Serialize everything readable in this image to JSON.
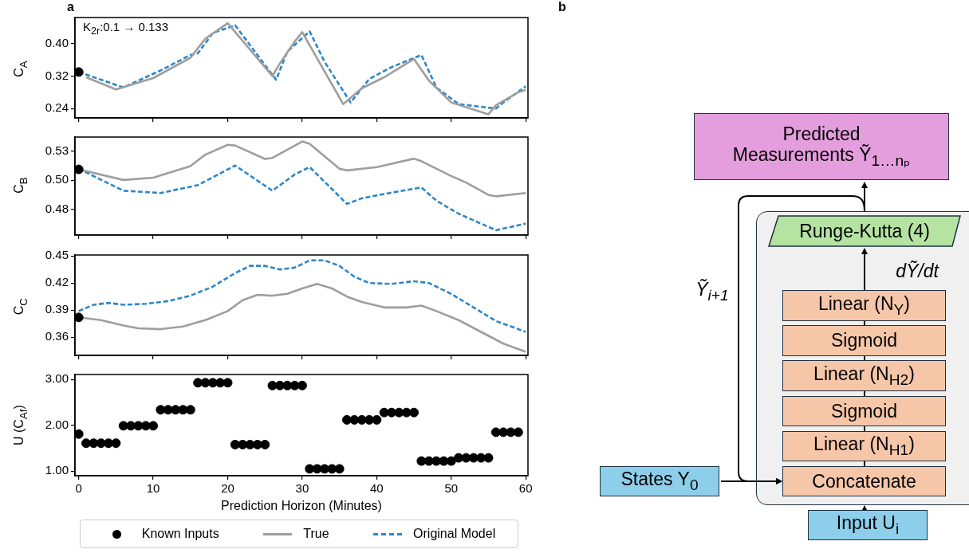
{
  "chart_data": [
    {
      "type": "line",
      "title": "a",
      "ylabel": "C$_{A}$",
      "annotations": [
        "K$_{2r}$:0.1 → 0.133"
      ],
      "xlim": [
        -0.5,
        60.3
      ],
      "xticks": [
        0,
        10,
        20,
        30,
        40,
        50,
        60
      ],
      "ylim": [
        0.217,
        0.464
      ],
      "yticks": [
        0.24,
        0.32,
        {
          "value": 0.4,
          "label": "0.40"
        }
      ],
      "tick_labels": "y",
      "legend": "bottom",
      "series": [
        {
          "type": "scatter",
          "name": "Known Inputs",
          "color": "#000000",
          "marker": "circle",
          "x": [
            0
          ],
          "values": [
            0.33
          ]
        },
        {
          "name": "True",
          "color": "#9e9e9e",
          "line_style": "solid",
          "x": [
            1,
            5,
            10,
            15,
            17,
            20,
            26,
            27,
            29,
            30,
            35.5,
            38,
            41,
            45,
            47,
            50,
            55,
            56,
            59,
            60
          ],
          "values": [
            0.317,
            0.287,
            0.315,
            0.365,
            0.412,
            0.45,
            0.32,
            0.351,
            0.405,
            0.428,
            0.251,
            0.29,
            0.317,
            0.362,
            0.309,
            0.255,
            0.226,
            0.248,
            0.28,
            0.286
          ]
        },
        {
          "name": "Original Model",
          "color": "#2e86c8",
          "line_style": "dashed",
          "x": [
            0,
            6,
            11,
            15,
            16,
            18,
            21,
            25,
            26.5,
            28,
            31,
            33,
            36.5,
            39,
            42,
            46,
            48,
            51,
            56,
            57,
            60
          ],
          "values": [
            0.33,
            0.292,
            0.334,
            0.372,
            0.376,
            0.426,
            0.445,
            0.347,
            0.311,
            0.38,
            0.43,
            0.355,
            0.255,
            0.313,
            0.342,
            0.372,
            0.292,
            0.251,
            0.24,
            0.255,
            0.295
          ]
        }
      ]
    },
    {
      "type": "line",
      "ylabel": "C$_{B}$",
      "xlim": [
        -0.5,
        60.3
      ],
      "xticks": [
        0,
        10,
        20,
        30,
        40,
        50,
        60
      ],
      "ylim": [
        0.4665,
        0.535
      ],
      "yticks": [
        {
          "value": 0.4845,
          "label": "0.48"
        },
        {
          "value": 0.5048,
          "label": "0.50"
        },
        {
          "value": 0.5251,
          "label": "0.53"
        }
      ],
      "tick_labels": "y",
      "series": [
        {
          "type": "scatter",
          "color": "#000000",
          "marker": "circle",
          "x": [
            0
          ],
          "values": [
            0.5124
          ]
        },
        {
          "color": "#9e9e9e",
          "line_style": "solid",
          "x": [
            0,
            6,
            10,
            15,
            17,
            20,
            21,
            25,
            26,
            30,
            31,
            35,
            36,
            40,
            45,
            46,
            50,
            52,
            55,
            56,
            60
          ],
          "values": [
            0.5124,
            0.505,
            0.5066,
            0.5147,
            0.5227,
            0.5296,
            0.5291,
            0.5197,
            0.5204,
            0.5319,
            0.5303,
            0.5128,
            0.5117,
            0.514,
            0.5199,
            0.5181,
            0.5078,
            0.5032,
            0.4945,
            0.4936,
            0.4959
          ]
        },
        {
          "color": "#2e86c8",
          "line_style": "dashed",
          "x": [
            0,
            6,
            11,
            16,
            21,
            26,
            29,
            31,
            36,
            38,
            41,
            46,
            48,
            51,
            56,
            60
          ],
          "values": [
            0.5128,
            0.4975,
            0.4959,
            0.5014,
            0.5151,
            0.4975,
            0.5089,
            0.514,
            0.4883,
            0.4922,
            0.4952,
            0.4998,
            0.4906,
            0.4814,
            0.4699,
            0.4745
          ]
        }
      ]
    },
    {
      "type": "line",
      "ylabel": "C$_{C}$",
      "xlim": [
        -0.5,
        60.3
      ],
      "xticks": [
        0,
        10,
        20,
        30,
        40,
        50,
        60
      ],
      "ylim": [
        0.34,
        0.451
      ],
      "yticks": [
        0.36,
        0.39,
        0.42,
        0.45
      ],
      "tick_labels": "y",
      "series": [
        {
          "type": "scatter",
          "color": "#000000",
          "marker": "circle",
          "x": [
            0
          ],
          "values": [
            0.382
          ]
        },
        {
          "color": "#9e9e9e",
          "line_style": "solid",
          "x": [
            0,
            3,
            6,
            8,
            11,
            14,
            17,
            20,
            22,
            24,
            26,
            28,
            30,
            32,
            34,
            36,
            38,
            41,
            44,
            46,
            48,
            51,
            54,
            57,
            60
          ],
          "values": [
            0.382,
            0.379,
            0.373,
            0.37,
            0.369,
            0.372,
            0.379,
            0.389,
            0.401,
            0.407,
            0.406,
            0.408,
            0.414,
            0.419,
            0.414,
            0.405,
            0.399,
            0.393,
            0.393,
            0.395,
            0.389,
            0.379,
            0.366,
            0.353,
            0.344
          ]
        },
        {
          "color": "#2e86c8",
          "line_style": "dashed",
          "x": [
            0,
            2,
            4,
            6,
            9,
            12,
            15,
            18,
            21,
            23,
            25,
            27,
            29,
            31,
            33,
            35,
            37,
            39,
            42,
            45,
            47,
            50,
            53,
            56,
            60
          ],
          "values": [
            0.389,
            0.396,
            0.398,
            0.396,
            0.397,
            0.4,
            0.406,
            0.416,
            0.431,
            0.439,
            0.439,
            0.435,
            0.437,
            0.445,
            0.445,
            0.439,
            0.427,
            0.42,
            0.419,
            0.422,
            0.42,
            0.408,
            0.393,
            0.378,
            0.366
          ]
        }
      ]
    },
    {
      "type": "scatter",
      "ylabel": "U (C$_{Af}$)",
      "xlabel": "Prediction Horizon (Minutes)",
      "xlim": [
        -0.5,
        60.3
      ],
      "xticks": [
        0,
        10,
        20,
        30,
        40,
        50,
        60
      ],
      "ylim": [
        0.9,
        3.11
      ],
      "yticks": [
        {
          "value": 1,
          "label": "1.00"
        },
        {
          "value": 2,
          "label": "2.00"
        },
        {
          "value": 3,
          "label": "3.00"
        }
      ],
      "color": "#000000",
      "marker": "circle",
      "x": [
        0,
        1,
        2,
        3,
        4,
        5,
        6,
        7,
        8,
        9,
        10,
        11,
        12,
        13,
        14,
        15,
        16,
        17,
        18,
        19,
        20,
        21,
        22,
        23,
        24,
        25,
        26,
        27,
        28,
        29,
        30,
        31,
        32,
        33,
        34,
        35,
        36,
        37,
        38,
        39,
        40,
        41,
        42,
        43,
        44,
        45,
        46,
        47,
        48,
        49,
        50,
        51,
        52,
        53,
        54,
        55,
        56,
        57,
        58,
        59
      ],
      "values": [
        1.81,
        1.61,
        1.61,
        1.61,
        1.61,
        1.61,
        1.99,
        1.99,
        1.99,
        1.99,
        1.99,
        2.34,
        2.34,
        2.34,
        2.34,
        2.34,
        2.93,
        2.93,
        2.93,
        2.93,
        2.93,
        1.58,
        1.58,
        1.58,
        1.58,
        1.58,
        2.87,
        2.87,
        2.87,
        2.87,
        2.87,
        1.05,
        1.05,
        1.05,
        1.05,
        1.05,
        2.12,
        2.12,
        2.12,
        2.12,
        2.12,
        2.28,
        2.28,
        2.28,
        2.28,
        2.28,
        1.22,
        1.22,
        1.22,
        1.22,
        1.22,
        1.29,
        1.29,
        1.29,
        1.29,
        1.29,
        1.85,
        1.85,
        1.85,
        1.85
      ]
    },
    {
      "type": "other",
      "title": "b",
      "annotations": [
        "Predicted Measurements Ỹ$_{1…nₚ}$",
        "Runge-Kutta (4)",
        "dỸ/dt",
        "Ỹ$_{i+1}$",
        "Linear (N$_{Y}$)",
        "Sigmoid",
        "Linear (N$_{H2}$)",
        "Sigmoid",
        "Linear (N$_{H1}$)",
        "Concatenate",
        "States Y$_{0}$",
        "Input U$_{i}$"
      ]
    }
  ]
}
